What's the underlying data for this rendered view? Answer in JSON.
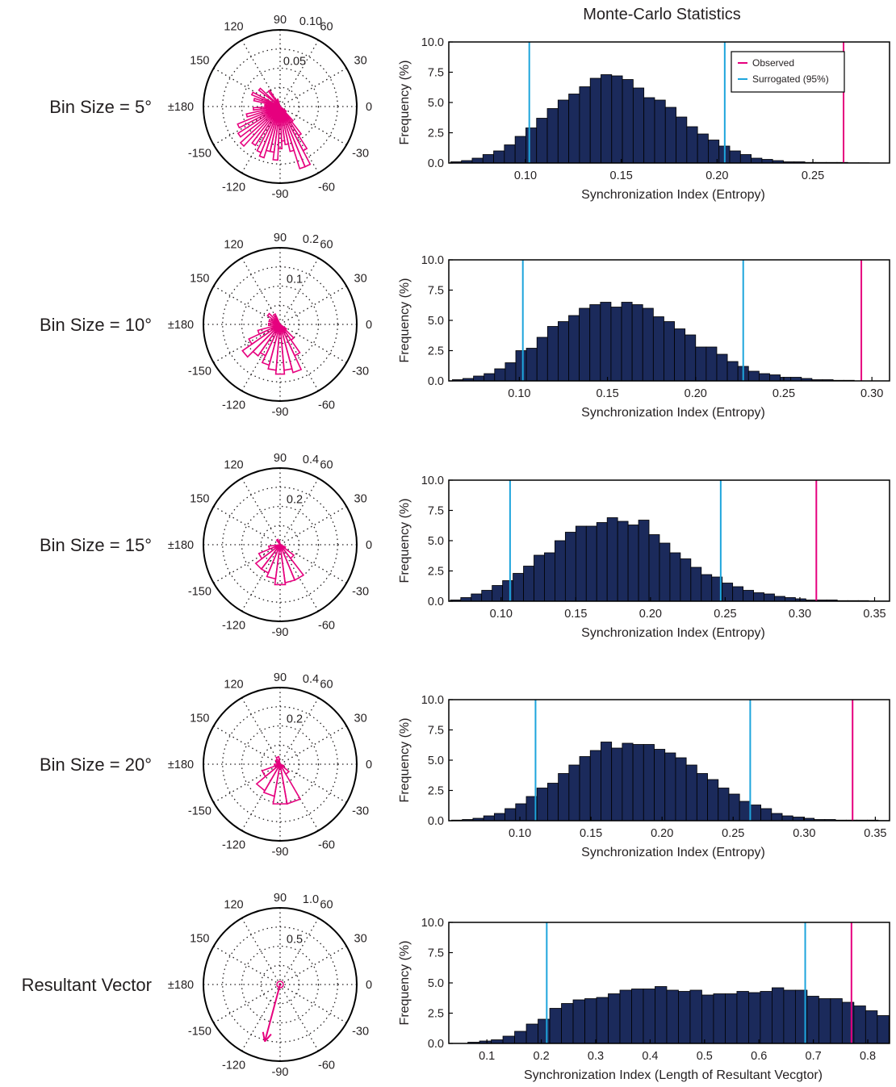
{
  "figure_title": "Monte-Carlo Statistics",
  "legend": {
    "observed": "Observed",
    "surrogated": "Surrogated (95%)"
  },
  "colors": {
    "bars": "#1b2a5b",
    "observed": "#e6007e",
    "surrogated": "#1ea5dc",
    "rose": "#e6007e",
    "axis": "#231f20"
  },
  "polar_angle_labels": [
    "90",
    "60",
    "30",
    "0",
    "-30",
    "-60",
    "-90",
    "-120",
    "-150",
    "±180",
    "150",
    "120"
  ],
  "chart_data": [
    {
      "type": "bar",
      "row_label": "Bin Size = 5°",
      "polar": {
        "kind": "rose",
        "bin_deg": 5,
        "r_ticks": [
          "0.05",
          "0.10"
        ],
        "rmax": 0.1,
        "bins": [
          [
            110,
            0.01
          ],
          [
            125,
            0.025
          ],
          [
            140,
            0.035
          ],
          [
            155,
            0.04
          ],
          [
            165,
            0.035
          ],
          [
            175,
            0.02
          ],
          [
            185,
            0.035
          ],
          [
            195,
            0.045
          ],
          [
            205,
            0.06
          ],
          [
            215,
            0.065
          ],
          [
            225,
            0.07
          ],
          [
            235,
            0.06
          ],
          [
            245,
            0.065
          ],
          [
            250,
            0.07
          ],
          [
            255,
            0.06
          ],
          [
            260,
            0.06
          ],
          [
            265,
            0.07
          ],
          [
            270,
            0.055
          ],
          [
            275,
            0.045
          ],
          [
            280,
            0.05
          ],
          [
            285,
            0.06
          ],
          [
            290,
            0.085
          ],
          [
            295,
            0.085
          ],
          [
            300,
            0.065
          ],
          [
            305,
            0.045
          ],
          [
            310,
            0.025
          ],
          [
            320,
            0.01
          ]
        ]
      },
      "xlabel": "Synchronization Index (Entropy)",
      "ylabel": "Frequency (%)",
      "xlim": [
        0.06,
        0.29
      ],
      "ylim": [
        0,
        10
      ],
      "xticks": [
        "0.10",
        "0.15",
        "0.20",
        "0.25"
      ],
      "yticks": [
        "0.0",
        "2.5",
        "5.0",
        "7.5",
        "10.0"
      ],
      "bin_start": 0.061,
      "bin_width": 0.0056,
      "values": [
        0.1,
        0.2,
        0.4,
        0.7,
        1.0,
        1.5,
        2.2,
        2.9,
        3.7,
        4.5,
        5.2,
        5.7,
        6.3,
        7.0,
        7.3,
        7.2,
        6.9,
        6.2,
        5.4,
        5.2,
        4.6,
        3.8,
        3.0,
        2.4,
        1.9,
        1.4,
        1.0,
        0.7,
        0.4,
        0.3,
        0.2,
        0.1,
        0.1,
        0.05,
        0.05,
        0.05,
        0.05,
        0.02,
        0.02
      ],
      "observed": 0.266,
      "surrogated": [
        0.102,
        0.204
      ],
      "show_legend": true,
      "show_title": true
    },
    {
      "type": "bar",
      "row_label": "Bin Size = 10°",
      "polar": {
        "kind": "rose",
        "bin_deg": 10,
        "r_ticks": [
          "0.1",
          "0.2"
        ],
        "rmax": 0.2,
        "bins": [
          [
            120,
            0.03
          ],
          [
            140,
            0.04
          ],
          [
            160,
            0.03
          ],
          [
            180,
            0.03
          ],
          [
            200,
            0.06
          ],
          [
            210,
            0.09
          ],
          [
            220,
            0.12
          ],
          [
            230,
            0.1
          ],
          [
            240,
            0.09
          ],
          [
            250,
            0.11
          ],
          [
            260,
            0.12
          ],
          [
            270,
            0.13
          ],
          [
            280,
            0.12
          ],
          [
            290,
            0.13
          ],
          [
            300,
            0.09
          ],
          [
            310,
            0.05
          ],
          [
            320,
            0.02
          ]
        ]
      },
      "xlabel": "Synchronization Index (Entropy)",
      "ylabel": "Frequency (%)",
      "xlim": [
        0.06,
        0.31
      ],
      "ylim": [
        0,
        10
      ],
      "xticks": [
        "0.10",
        "0.15",
        "0.20",
        "0.25",
        "0.30"
      ],
      "yticks": [
        "0.0",
        "2.5",
        "5.0",
        "7.5",
        "10.0"
      ],
      "bin_start": 0.062,
      "bin_width": 0.006,
      "values": [
        0.1,
        0.2,
        0.4,
        0.6,
        1.0,
        1.5,
        2.5,
        2.7,
        3.6,
        4.5,
        4.9,
        5.4,
        6.0,
        6.3,
        6.5,
        6.1,
        6.5,
        6.3,
        6.0,
        5.3,
        4.9,
        4.3,
        3.8,
        2.8,
        2.8,
        2.2,
        1.6,
        1.2,
        0.8,
        0.6,
        0.5,
        0.3,
        0.3,
        0.2,
        0.1,
        0.1,
        0.05,
        0.05
      ],
      "observed": 0.294,
      "surrogated": [
        0.102,
        0.227
      ],
      "show_legend": false,
      "show_title": false
    },
    {
      "type": "bar",
      "row_label": "Bin Size = 15°",
      "polar": {
        "kind": "rose",
        "bin_deg": 15,
        "r_ticks": [
          "0.2",
          "0.4"
        ],
        "rmax": 0.4,
        "bins": [
          [
            195,
            0.06
          ],
          [
            210,
            0.12
          ],
          [
            225,
            0.16
          ],
          [
            240,
            0.16
          ],
          [
            255,
            0.18
          ],
          [
            270,
            0.21
          ],
          [
            285,
            0.2
          ],
          [
            300,
            0.2
          ],
          [
            315,
            0.09
          ],
          [
            330,
            0.03
          ],
          [
            345,
            0.01
          ],
          [
            105,
            0.02
          ],
          [
            120,
            0.03
          ]
        ]
      },
      "xlabel": "Synchronization Index (Entropy)",
      "ylabel": "Frequency (%)",
      "xlim": [
        0.065,
        0.36
      ],
      "ylim": [
        0,
        10
      ],
      "xticks": [
        "0.10",
        "0.15",
        "0.20",
        "0.25",
        "0.30",
        "0.35"
      ],
      "yticks": [
        "0.0",
        "2.5",
        "5.0",
        "7.5",
        "10.0"
      ],
      "bin_start": 0.066,
      "bin_width": 0.007,
      "values": [
        0.1,
        0.3,
        0.6,
        0.9,
        1.3,
        1.7,
        2.3,
        2.9,
        3.8,
        4.0,
        5.0,
        5.7,
        6.2,
        6.2,
        6.5,
        6.9,
        6.6,
        6.3,
        6.7,
        5.5,
        4.8,
        4.0,
        3.5,
        2.8,
        2.2,
        2.0,
        1.5,
        1.2,
        0.9,
        0.7,
        0.6,
        0.4,
        0.3,
        0.2,
        0.1,
        0.1,
        0.1,
        0.05,
        0.05,
        0.05,
        0.02,
        0.02
      ],
      "observed": 0.311,
      "surrogated": [
        0.106,
        0.247
      ],
      "show_legend": false,
      "show_title": false
    },
    {
      "type": "bar",
      "row_label": "Bin Size = 20°",
      "polar": {
        "kind": "rose",
        "bin_deg": 20,
        "r_ticks": [
          "0.2",
          "0.4"
        ],
        "rmax": 0.4,
        "bins": [
          [
            110,
            0.04
          ],
          [
            130,
            0.03
          ],
          [
            150,
            0.02
          ],
          [
            190,
            0.03
          ],
          [
            210,
            0.1
          ],
          [
            230,
            0.16
          ],
          [
            250,
            0.17
          ],
          [
            270,
            0.21
          ],
          [
            290,
            0.21
          ],
          [
            310,
            0.06
          ],
          [
            330,
            0.02
          ]
        ]
      },
      "xlabel": "Synchronization Index (Entropy)",
      "ylabel": "Frequency (%)",
      "xlim": [
        0.05,
        0.36
      ],
      "ylim": [
        0,
        10
      ],
      "xticks": [
        "0.10",
        "0.15",
        "0.20",
        "0.25",
        "0.30",
        "0.35"
      ],
      "yticks": [
        "0.0",
        "2.5",
        "5.0",
        "7.5",
        "10.0"
      ],
      "bin_start": 0.052,
      "bin_width": 0.0075,
      "values": [
        0.05,
        0.1,
        0.2,
        0.4,
        0.6,
        1.0,
        1.4,
        2.0,
        2.7,
        3.1,
        3.9,
        4.6,
        5.3,
        5.8,
        6.5,
        6.0,
        6.4,
        6.3,
        6.3,
        5.9,
        5.6,
        5.2,
        4.6,
        3.9,
        3.4,
        2.7,
        2.2,
        1.6,
        1.3,
        1.0,
        0.6,
        0.4,
        0.3,
        0.2,
        0.1,
        0.1,
        0.05,
        0.05,
        0.05,
        0.05,
        0.02
      ],
      "observed": 0.334,
      "surrogated": [
        0.111,
        0.262
      ],
      "show_legend": false,
      "show_title": false
    },
    {
      "type": "bar",
      "row_label": "Resultant Vector",
      "polar": {
        "kind": "vector",
        "r_ticks": [
          "0.5",
          "1.0"
        ],
        "rmax": 1.0,
        "angle": -105,
        "magnitude": 0.77
      },
      "xlabel": "Synchronization Index (Length of Resultant Vecgtor)",
      "ylabel": "Frequency (%)",
      "xlim": [
        0.03,
        0.84
      ],
      "ylim": [
        0,
        10
      ],
      "xticks": [
        "0.1",
        "0.2",
        "0.3",
        "0.4",
        "0.5",
        "0.6",
        "0.7",
        "0.8"
      ],
      "yticks": [
        "0.0",
        "2.5",
        "5.0",
        "7.5",
        "10.0"
      ],
      "bin_start": 0.065,
      "bin_width": 0.0215,
      "values": [
        0.1,
        0.2,
        0.3,
        0.6,
        1.0,
        1.6,
        2.0,
        2.9,
        3.3,
        3.6,
        3.7,
        3.8,
        4.1,
        4.4,
        4.5,
        4.5,
        4.7,
        4.4,
        4.3,
        4.4,
        4.0,
        4.1,
        4.1,
        4.3,
        4.2,
        4.3,
        4.6,
        4.4,
        4.4,
        3.9,
        3.7,
        3.7,
        3.4,
        3.1,
        2.7,
        2.3,
        1.7,
        1.3,
        0.9,
        0.4,
        0.2,
        0.1
      ],
      "observed": 0.77,
      "surrogated": [
        0.21,
        0.685
      ],
      "show_legend": false,
      "show_title": false
    }
  ]
}
